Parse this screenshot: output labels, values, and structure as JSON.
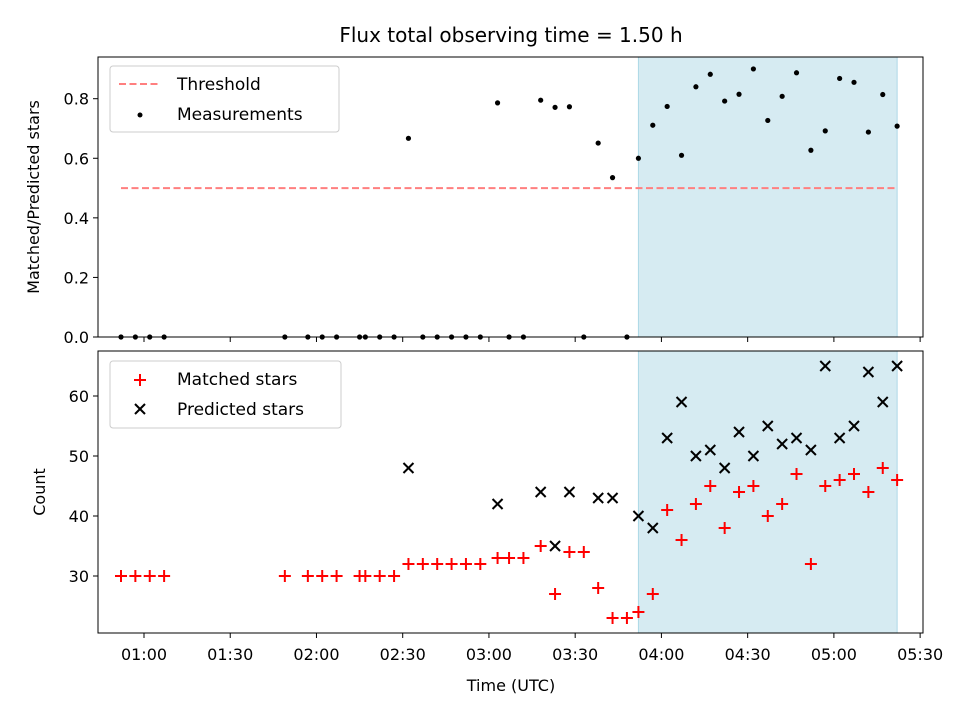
{
  "chart_data": [
    {
      "type": "scatter",
      "title": "Flux total observing time = 1.50 h",
      "ylabel": "Matched/Predicted stars",
      "ylim": [
        0,
        0.94
      ],
      "yticks": [
        "0.0",
        "0.2",
        "0.4",
        "0.6",
        "0.8"
      ],
      "ytick_values": [
        0,
        0.2,
        0.4,
        0.6,
        0.8
      ],
      "legend_position": "upper-left",
      "highlight": {
        "x_start": "03:52",
        "x_end": "05:22",
        "color": "#add8e6"
      },
      "threshold": {
        "name": "Threshold",
        "value": 0.5,
        "x_start": "00:52",
        "x_end": "05:22",
        "color": "#ff7f7f",
        "style": "dashed"
      },
      "series": [
        {
          "name": "Measurements",
          "color": "#000000",
          "marker": "dot",
          "points": [
            [
              "00:52",
              0
            ],
            [
              "00:57",
              0
            ],
            [
              "01:02",
              0
            ],
            [
              "01:07",
              0
            ],
            [
              "01:49",
              0
            ],
            [
              "01:57",
              0
            ],
            [
              "02:02",
              0
            ],
            [
              "02:07",
              0
            ],
            [
              "02:15",
              0
            ],
            [
              "02:17",
              0
            ],
            [
              "02:22",
              0
            ],
            [
              "02:27",
              0
            ],
            [
              "02:32",
              0.667
            ],
            [
              "02:37",
              0
            ],
            [
              "02:42",
              0
            ],
            [
              "02:47",
              0
            ],
            [
              "02:52",
              0
            ],
            [
              "02:57",
              0
            ],
            [
              "03:03",
              0.786
            ],
            [
              "03:07",
              0
            ],
            [
              "03:12",
              0
            ],
            [
              "03:18",
              0.795
            ],
            [
              "03:23",
              0.771
            ],
            [
              "03:28",
              0.773
            ],
            [
              "03:33",
              0
            ],
            [
              "03:38",
              0.651
            ],
            [
              "03:43",
              0.535
            ],
            [
              "03:48",
              0
            ],
            [
              "03:52",
              0.6
            ],
            [
              "03:57",
              0.711
            ],
            [
              "04:02",
              0.774
            ],
            [
              "04:07",
              0.61
            ],
            [
              "04:12",
              0.84
            ],
            [
              "04:17",
              0.882
            ],
            [
              "04:22",
              0.792
            ],
            [
              "04:27",
              0.815
            ],
            [
              "04:32",
              0.9
            ],
            [
              "04:37",
              0.727
            ],
            [
              "04:42",
              0.808
            ],
            [
              "04:47",
              0.887
            ],
            [
              "04:52",
              0.627
            ],
            [
              "04:57",
              0.692
            ],
            [
              "05:02",
              0.868
            ],
            [
              "05:07",
              0.855
            ],
            [
              "05:12",
              0.688
            ],
            [
              "05:17",
              0.814
            ],
            [
              "05:22",
              0.708
            ]
          ]
        }
      ]
    },
    {
      "type": "scatter",
      "xlabel": "Time (UTC)",
      "ylabel": "Count",
      "ylim": [
        20.5,
        67.5
      ],
      "yticks": [
        "30",
        "40",
        "50",
        "60"
      ],
      "ytick_values": [
        30,
        40,
        50,
        60
      ],
      "xlim": [
        "00:44",
        "05:31"
      ],
      "xticks": [
        "01:00",
        "01:30",
        "02:00",
        "02:30",
        "03:00",
        "03:30",
        "04:00",
        "04:30",
        "05:00",
        "05:30"
      ],
      "legend_position": "upper-left",
      "highlight": {
        "x_start": "03:52",
        "x_end": "05:22",
        "color": "#add8e6"
      },
      "series": [
        {
          "name": "Matched stars",
          "color": "#ff0000",
          "marker": "plus",
          "points": [
            [
              "00:52",
              30
            ],
            [
              "00:57",
              30
            ],
            [
              "01:02",
              30
            ],
            [
              "01:07",
              30
            ],
            [
              "01:49",
              30
            ],
            [
              "01:57",
              30
            ],
            [
              "02:02",
              30
            ],
            [
              "02:07",
              30
            ],
            [
              "02:15",
              30
            ],
            [
              "02:17",
              30
            ],
            [
              "02:22",
              30
            ],
            [
              "02:27",
              30
            ],
            [
              "02:32",
              32
            ],
            [
              "02:37",
              32
            ],
            [
              "02:42",
              32
            ],
            [
              "02:47",
              32
            ],
            [
              "02:52",
              32
            ],
            [
              "02:57",
              32
            ],
            [
              "03:03",
              33
            ],
            [
              "03:07",
              33
            ],
            [
              "03:12",
              33
            ],
            [
              "03:18",
              35
            ],
            [
              "03:23",
              27
            ],
            [
              "03:28",
              34
            ],
            [
              "03:33",
              34
            ],
            [
              "03:38",
              28
            ],
            [
              "03:43",
              23
            ],
            [
              "03:48",
              23
            ],
            [
              "03:52",
              24
            ],
            [
              "03:57",
              27
            ],
            [
              "04:02",
              41
            ],
            [
              "04:07",
              36
            ],
            [
              "04:12",
              42
            ],
            [
              "04:17",
              45
            ],
            [
              "04:22",
              38
            ],
            [
              "04:27",
              44
            ],
            [
              "04:32",
              45
            ],
            [
              "04:37",
              40
            ],
            [
              "04:42",
              42
            ],
            [
              "04:47",
              47
            ],
            [
              "04:52",
              32
            ],
            [
              "04:57",
              45
            ],
            [
              "05:02",
              46
            ],
            [
              "05:07",
              47
            ],
            [
              "05:12",
              44
            ],
            [
              "05:17",
              48
            ],
            [
              "05:22",
              46
            ]
          ]
        },
        {
          "name": "Predicted stars",
          "color": "#000000",
          "marker": "x",
          "points": [
            [
              "02:32",
              48
            ],
            [
              "03:03",
              42
            ],
            [
              "03:18",
              44
            ],
            [
              "03:23",
              35
            ],
            [
              "03:28",
              44
            ],
            [
              "03:38",
              43
            ],
            [
              "03:43",
              43
            ],
            [
              "03:52",
              40
            ],
            [
              "03:57",
              38
            ],
            [
              "04:02",
              53
            ],
            [
              "04:07",
              59
            ],
            [
              "04:12",
              50
            ],
            [
              "04:17",
              51
            ],
            [
              "04:22",
              48
            ],
            [
              "04:27",
              54
            ],
            [
              "04:32",
              50
            ],
            [
              "04:37",
              55
            ],
            [
              "04:42",
              52
            ],
            [
              "04:47",
              53
            ],
            [
              "04:52",
              51
            ],
            [
              "04:57",
              65
            ],
            [
              "05:02",
              53
            ],
            [
              "05:07",
              55
            ],
            [
              "05:12",
              64
            ],
            [
              "05:17",
              59
            ],
            [
              "05:22",
              65
            ]
          ]
        }
      ]
    }
  ]
}
